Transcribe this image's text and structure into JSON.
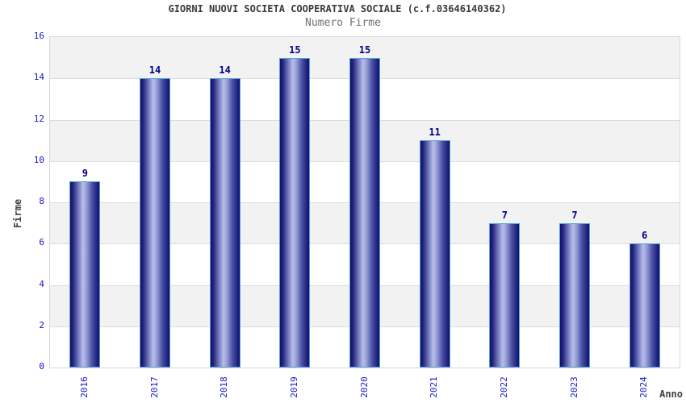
{
  "chart_data": {
    "type": "bar",
    "title": "GIORNI NUOVI SOCIETA COOPERATIVA SOCIALE (c.f.03646140362)",
    "subtitle": "Numero Firme",
    "categories": [
      "2016",
      "2017",
      "2018",
      "2019",
      "2020",
      "2021",
      "2022",
      "2023",
      "2024"
    ],
    "values": [
      9,
      14,
      14,
      15,
      15,
      11,
      7,
      7,
      6
    ],
    "xlabel": "Anno",
    "ylabel": "Firme",
    "ylim": [
      0,
      16
    ],
    "yticks": [
      0,
      2,
      4,
      6,
      8,
      10,
      12,
      14,
      16
    ],
    "grid": "horizontal-alternating-bands",
    "legend": "none",
    "x_tick_rotation": 90,
    "colors": {
      "bar_dark": "#10106e",
      "bar_mid": "#4a51a5",
      "bar_light": "#b8bee8",
      "bar_border": "#58a0d8",
      "value_label": "#00008b",
      "tick_label": "#1414c8",
      "band_fill": "#f2f2f2",
      "band_alt_fill": "#ffffff",
      "gridline": "#dcdcdc",
      "plot_border": "#d8d8d8",
      "title_color": "#3a3a3a",
      "subtitle_color": "#707070",
      "axis_title_color": "#404040",
      "background": "#ffffff"
    }
  }
}
